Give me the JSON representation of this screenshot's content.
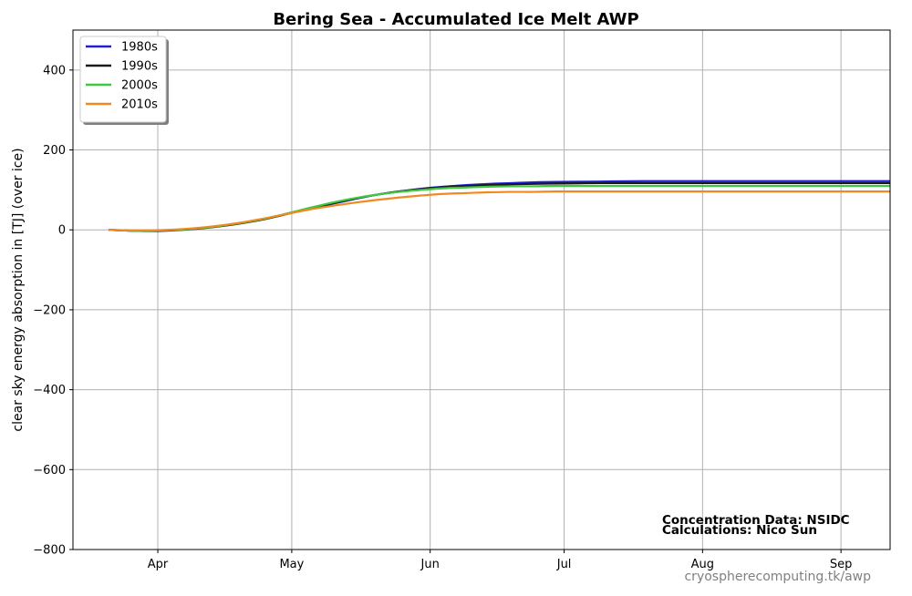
{
  "chart_data": {
    "type": "line",
    "title": "Bering Sea - Accumulated Ice Melt  AWP",
    "xlabel": "",
    "ylabel": "clear sky energy absorption in  [TJ] (over ice)",
    "xlim": [
      72,
      255
    ],
    "ylim": [
      -800,
      500
    ],
    "yticks": [
      -800,
      -600,
      -400,
      -200,
      0,
      200,
      400
    ],
    "ytick_labels": [
      "−800",
      "−600",
      "−400",
      "−200",
      "0",
      "200",
      "400"
    ],
    "xticks": [
      {
        "day": 91,
        "label": "Apr"
      },
      {
        "day": 121,
        "label": "May"
      },
      {
        "day": 152,
        "label": "Jun"
      },
      {
        "day": 182,
        "label": "Jul"
      },
      {
        "day": 213,
        "label": "Aug"
      },
      {
        "day": 244,
        "label": "Sep"
      }
    ],
    "grid": true,
    "legend_position": "top-left",
    "series": [
      {
        "name": "1980s",
        "color": "#2020d0",
        "x": [
          80,
          85,
          90,
          95,
          100,
          105,
          110,
          115,
          120,
          125,
          130,
          135,
          140,
          145,
          150,
          155,
          160,
          165,
          170,
          175,
          180,
          190,
          200,
          220,
          240,
          263
        ],
        "y": [
          0,
          -2,
          -2,
          0,
          4,
          10,
          18,
          28,
          40,
          53,
          65,
          77,
          88,
          96,
          103,
          108,
          112,
          115,
          117,
          119,
          120,
          121,
          122,
          122,
          122,
          122
        ]
      },
      {
        "name": "1990s",
        "color": "#1a1a1a",
        "x": [
          80,
          85,
          90,
          95,
          100,
          105,
          110,
          115,
          120,
          125,
          130,
          135,
          140,
          145,
          150,
          155,
          160,
          165,
          170,
          175,
          180,
          190,
          200,
          220,
          240,
          263
        ],
        "y": [
          0,
          -2,
          -3,
          -1,
          3,
          9,
          17,
          27,
          40,
          54,
          66,
          78,
          88,
          96,
          102,
          107,
          110,
          112,
          114,
          115,
          116,
          117,
          117,
          117,
          117,
          117
        ]
      },
      {
        "name": "2000s",
        "color": "#3fc83f",
        "x": [
          80,
          85,
          90,
          95,
          100,
          105,
          110,
          115,
          120,
          125,
          130,
          135,
          140,
          145,
          150,
          155,
          160,
          165,
          170,
          175,
          180,
          190,
          200,
          220,
          240,
          263
        ],
        "y": [
          0,
          -2,
          -2,
          0,
          4,
          10,
          18,
          28,
          41,
          55,
          68,
          79,
          88,
          95,
          100,
          104,
          106,
          108,
          109,
          109,
          110,
          110,
          110,
          110,
          110,
          110
        ]
      },
      {
        "name": "2010s",
        "color": "#f08a20",
        "x": [
          80,
          85,
          90,
          95,
          100,
          105,
          110,
          115,
          120,
          125,
          130,
          135,
          140,
          145,
          150,
          155,
          160,
          165,
          170,
          175,
          180,
          190,
          200,
          220,
          240,
          263
        ],
        "y": [
          0,
          -1,
          -1,
          1,
          5,
          11,
          19,
          29,
          40,
          51,
          60,
          68,
          75,
          81,
          86,
          90,
          92,
          94,
          95,
          95,
          96,
          96,
          96,
          96,
          96,
          96
        ]
      }
    ],
    "annotations": [
      {
        "text": "Concentration Data: NSIDC"
      },
      {
        "text": "Calculations: Nico Sun"
      }
    ],
    "watermark": "cryospherecomputing.tk/awp"
  }
}
